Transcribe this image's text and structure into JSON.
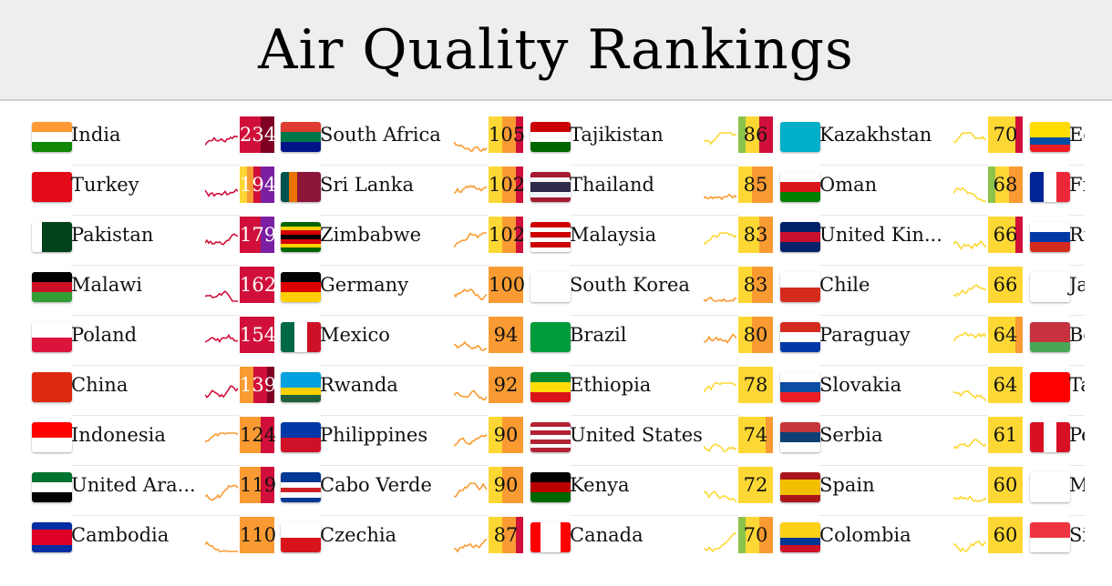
{
  "title": "Air Quality Rankings",
  "colors": {
    "G": "#8bc34a",
    "Y": "#fdd835",
    "O": "#f99b32",
    "R": "#d0103a",
    "P": "#7b1fa2",
    "M": "#7e0023"
  },
  "columns": [
    [
      {
        "name": "India",
        "value": "234",
        "stripes": "RRRMM",
        "flag": {
          "dir": "h",
          "c": [
            "#ff9933",
            "#ffffff",
            "#138808"
          ]
        }
      },
      {
        "name": "Turkey",
        "value": "194",
        "stripes": "YORPP",
        "flag": {
          "dir": "h",
          "c": [
            "#e30a17"
          ]
        }
      },
      {
        "name": "Pakistan",
        "value": "179",
        "stripes": "RRRPP",
        "flag": {
          "dir": "v",
          "c": [
            "#ffffff",
            "#01411c",
            "#01411c",
            "#01411c"
          ]
        }
      },
      {
        "name": "Malawi",
        "value": "162",
        "stripes": "RRRRR",
        "flag": {
          "dir": "h",
          "c": [
            "#000000",
            "#ce1126",
            "#339e35"
          ]
        }
      },
      {
        "name": "Poland",
        "value": "154",
        "stripes": "RRRRR",
        "flag": {
          "dir": "h",
          "c": [
            "#ffffff",
            "#dc143c"
          ]
        }
      },
      {
        "name": "China",
        "value": "139",
        "stripes": "OORRM",
        "flag": {
          "dir": "h",
          "c": [
            "#de2910"
          ]
        }
      },
      {
        "name": "Indonesia",
        "value": "124",
        "stripes": "OOORR",
        "flag": {
          "dir": "h",
          "c": [
            "#ff0000",
            "#ffffff"
          ]
        }
      },
      {
        "name": "United Ara...",
        "value": "119",
        "stripes": "OOORR",
        "flag": {
          "dir": "h",
          "c": [
            "#00732f",
            "#ffffff",
            "#000000"
          ]
        }
      },
      {
        "name": "Cambodia",
        "value": "110",
        "stripes": "OOOOO",
        "flag": {
          "dir": "h",
          "c": [
            "#032ea1",
            "#e00025",
            "#e00025",
            "#032ea1"
          ]
        }
      }
    ],
    [
      {
        "name": "South Africa",
        "value": "105",
        "stripes": "YYOOR",
        "flag": {
          "dir": "h",
          "c": [
            "#e03c31",
            "#007749",
            "#001489"
          ]
        }
      },
      {
        "name": "Sri Lanka",
        "value": "102",
        "stripes": "YYOOR",
        "flag": {
          "dir": "v",
          "c": [
            "#00534e",
            "#eb7400",
            "#8d153a",
            "#8d153a",
            "#8d153a"
          ]
        }
      },
      {
        "name": "Zimbabwe",
        "value": "102",
        "stripes": "YYOOR",
        "flag": {
          "dir": "h",
          "c": [
            "#006400",
            "#ffd200",
            "#d40000",
            "#000000",
            "#d40000",
            "#ffd200",
            "#006400"
          ]
        }
      },
      {
        "name": "Germany",
        "value": "100",
        "stripes": "OOOOO",
        "flag": {
          "dir": "h",
          "c": [
            "#000000",
            "#dd0000",
            "#ffce00"
          ]
        }
      },
      {
        "name": "Mexico",
        "value": "94",
        "stripes": "OOOOO",
        "flag": {
          "dir": "v",
          "c": [
            "#006847",
            "#ffffff",
            "#ce1126"
          ]
        }
      },
      {
        "name": "Rwanda",
        "value": "92",
        "stripes": "OOOOO",
        "flag": {
          "dir": "h",
          "c": [
            "#00a1de",
            "#00a1de",
            "#fad201",
            "#20603d"
          ]
        }
      },
      {
        "name": "Philippines",
        "value": "90",
        "stripes": "YYOOO",
        "flag": {
          "dir": "h",
          "c": [
            "#0038a8",
            "#ce1126"
          ]
        }
      },
      {
        "name": "Cabo Verde",
        "value": "90",
        "stripes": "YYOOO",
        "flag": {
          "dir": "h",
          "c": [
            "#003893",
            "#003893",
            "#ffffff",
            "#cf2027",
            "#ffffff",
            "#003893"
          ]
        }
      },
      {
        "name": "Czechia",
        "value": "87",
        "stripes": "YYOOR",
        "flag": {
          "dir": "h",
          "c": [
            "#ffffff",
            "#d7141a"
          ]
        }
      }
    ],
    [
      {
        "name": "Tajikistan",
        "value": "86",
        "stripes": "GYYRR",
        "flag": {
          "dir": "h",
          "c": [
            "#cc0000",
            "#ffffff",
            "#006600"
          ]
        }
      },
      {
        "name": "Thailand",
        "value": "85",
        "stripes": "YYOOO",
        "flag": {
          "dir": "h",
          "c": [
            "#a51931",
            "#f4f5f8",
            "#2d2a4a",
            "#2d2a4a",
            "#f4f5f8",
            "#a51931"
          ]
        }
      },
      {
        "name": "Malaysia",
        "value": "83",
        "stripes": "YYYOO",
        "flag": {
          "dir": "h",
          "c": [
            "#cc0001",
            "#ffffff",
            "#cc0001",
            "#ffffff",
            "#cc0001",
            "#ffffff"
          ]
        }
      },
      {
        "name": "South Korea",
        "value": "83",
        "stripes": "YYOOO",
        "flag": {
          "dir": "h",
          "c": [
            "#ffffff"
          ]
        }
      },
      {
        "name": "Brazil",
        "value": "80",
        "stripes": "YYOOO",
        "flag": {
          "dir": "h",
          "c": [
            "#009c3b"
          ]
        }
      },
      {
        "name": "Ethiopia",
        "value": "78",
        "stripes": "YYYYY",
        "flag": {
          "dir": "h",
          "c": [
            "#078930",
            "#fcdd09",
            "#da121a"
          ]
        }
      },
      {
        "name": "United States",
        "value": "74",
        "stripes": "YYYYO",
        "flag": {
          "dir": "h",
          "c": [
            "#b22234",
            "#ffffff",
            "#b22234",
            "#ffffff",
            "#b22234",
            "#ffffff",
            "#b22234"
          ]
        }
      },
      {
        "name": "Kenya",
        "value": "72",
        "stripes": "YYYYY",
        "flag": {
          "dir": "h",
          "c": [
            "#000000",
            "#bb0000",
            "#006600"
          ]
        }
      },
      {
        "name": "Canada",
        "value": "70",
        "stripes": "GYYOO",
        "flag": {
          "dir": "v",
          "c": [
            "#ff0000",
            "#ffffff",
            "#ffffff",
            "#ff0000"
          ]
        }
      }
    ],
    [
      {
        "name": "Kazakhstan",
        "value": "70",
        "stripes": "YYYYR",
        "flag": {
          "dir": "h",
          "c": [
            "#00afca"
          ]
        }
      },
      {
        "name": "Oman",
        "value": "68",
        "stripes": "GYYOO",
        "flag": {
          "dir": "h",
          "c": [
            "#ffffff",
            "#db161b",
            "#008000"
          ]
        }
      },
      {
        "name": "United Kin...",
        "value": "66",
        "stripes": "YYYYR",
        "flag": {
          "dir": "h",
          "c": [
            "#012169",
            "#c8102e",
            "#012169"
          ]
        }
      },
      {
        "name": "Chile",
        "value": "66",
        "stripes": "YYYYY",
        "flag": {
          "dir": "h",
          "c": [
            "#ffffff",
            "#d52b1e"
          ]
        }
      },
      {
        "name": "Paraguay",
        "value": "64",
        "stripes": "YYYYO",
        "flag": {
          "dir": "h",
          "c": [
            "#d52b1e",
            "#ffffff",
            "#0038a8"
          ]
        }
      },
      {
        "name": "Slovakia",
        "value": "64",
        "stripes": "YYYYY",
        "flag": {
          "dir": "h",
          "c": [
            "#ffffff",
            "#0b4ea2",
            "#ee1c25"
          ]
        }
      },
      {
        "name": "Serbia",
        "value": "61",
        "stripes": "YYYYY",
        "flag": {
          "dir": "h",
          "c": [
            "#c6363c",
            "#0c4076",
            "#ffffff"
          ]
        }
      },
      {
        "name": "Spain",
        "value": "60",
        "stripes": "YYYYY",
        "flag": {
          "dir": "h",
          "c": [
            "#aa151b",
            "#f1bf00",
            "#f1bf00",
            "#aa151b"
          ]
        }
      },
      {
        "name": "Colombia",
        "value": "60",
        "stripes": "YYYYY",
        "flag": {
          "dir": "h",
          "c": [
            "#fcd116",
            "#fcd116",
            "#003893",
            "#ce1126"
          ]
        }
      }
    ],
    [
      {
        "name": "Ecuador",
        "flag": {
          "dir": "h",
          "c": [
            "#ffdd00",
            "#ffdd00",
            "#034ea2",
            "#ed1c24"
          ]
        }
      },
      {
        "name": "France",
        "flag": {
          "dir": "v",
          "c": [
            "#002395",
            "#ffffff",
            "#ed2939"
          ]
        }
      },
      {
        "name": "Russia",
        "flag": {
          "dir": "h",
          "c": [
            "#ffffff",
            "#0039a6",
            "#d52b1e"
          ]
        }
      },
      {
        "name": "Japan",
        "flag": {
          "dir": "h",
          "c": [
            "#ffffff"
          ]
        }
      },
      {
        "name": "Belarus",
        "flag": {
          "dir": "h",
          "c": [
            "#c8313e",
            "#c8313e",
            "#4aa657"
          ]
        }
      },
      {
        "name": "Taiwan",
        "flag": {
          "dir": "h",
          "c": [
            "#fe0000"
          ]
        }
      },
      {
        "name": "Peru",
        "flag": {
          "dir": "v",
          "c": [
            "#d91023",
            "#ffffff",
            "#d91023"
          ]
        }
      },
      {
        "name": "Mayotte",
        "flag": {
          "dir": "h",
          "c": [
            "#ffffff"
          ]
        }
      },
      {
        "name": "Singapore",
        "flag": {
          "dir": "h",
          "c": [
            "#ef3340",
            "#ffffff"
          ]
        }
      }
    ]
  ]
}
